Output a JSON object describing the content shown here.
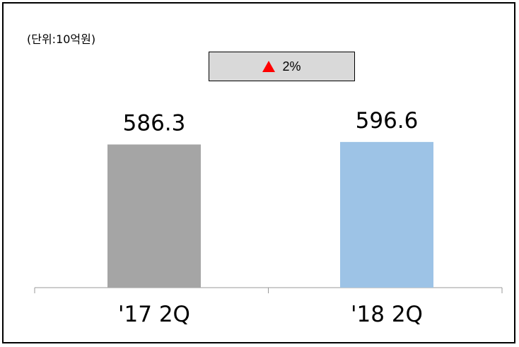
{
  "unit_label": "(단위:10억원)",
  "change_badge": {
    "text": "2%",
    "direction": "up",
    "arrow_color": "#ff0000",
    "background": "#d9d9d9"
  },
  "chart_data": {
    "type": "bar",
    "title": "",
    "xlabel": "",
    "ylabel": "",
    "categories": [
      "'17 2Q",
      "'18 2Q"
    ],
    "values": [
      586.3,
      596.6
    ],
    "value_labels": [
      "586.3",
      "596.6"
    ],
    "bar_colors": [
      "#a5a5a5",
      "#9dc3e6"
    ],
    "grid": false,
    "legend": "none"
  }
}
